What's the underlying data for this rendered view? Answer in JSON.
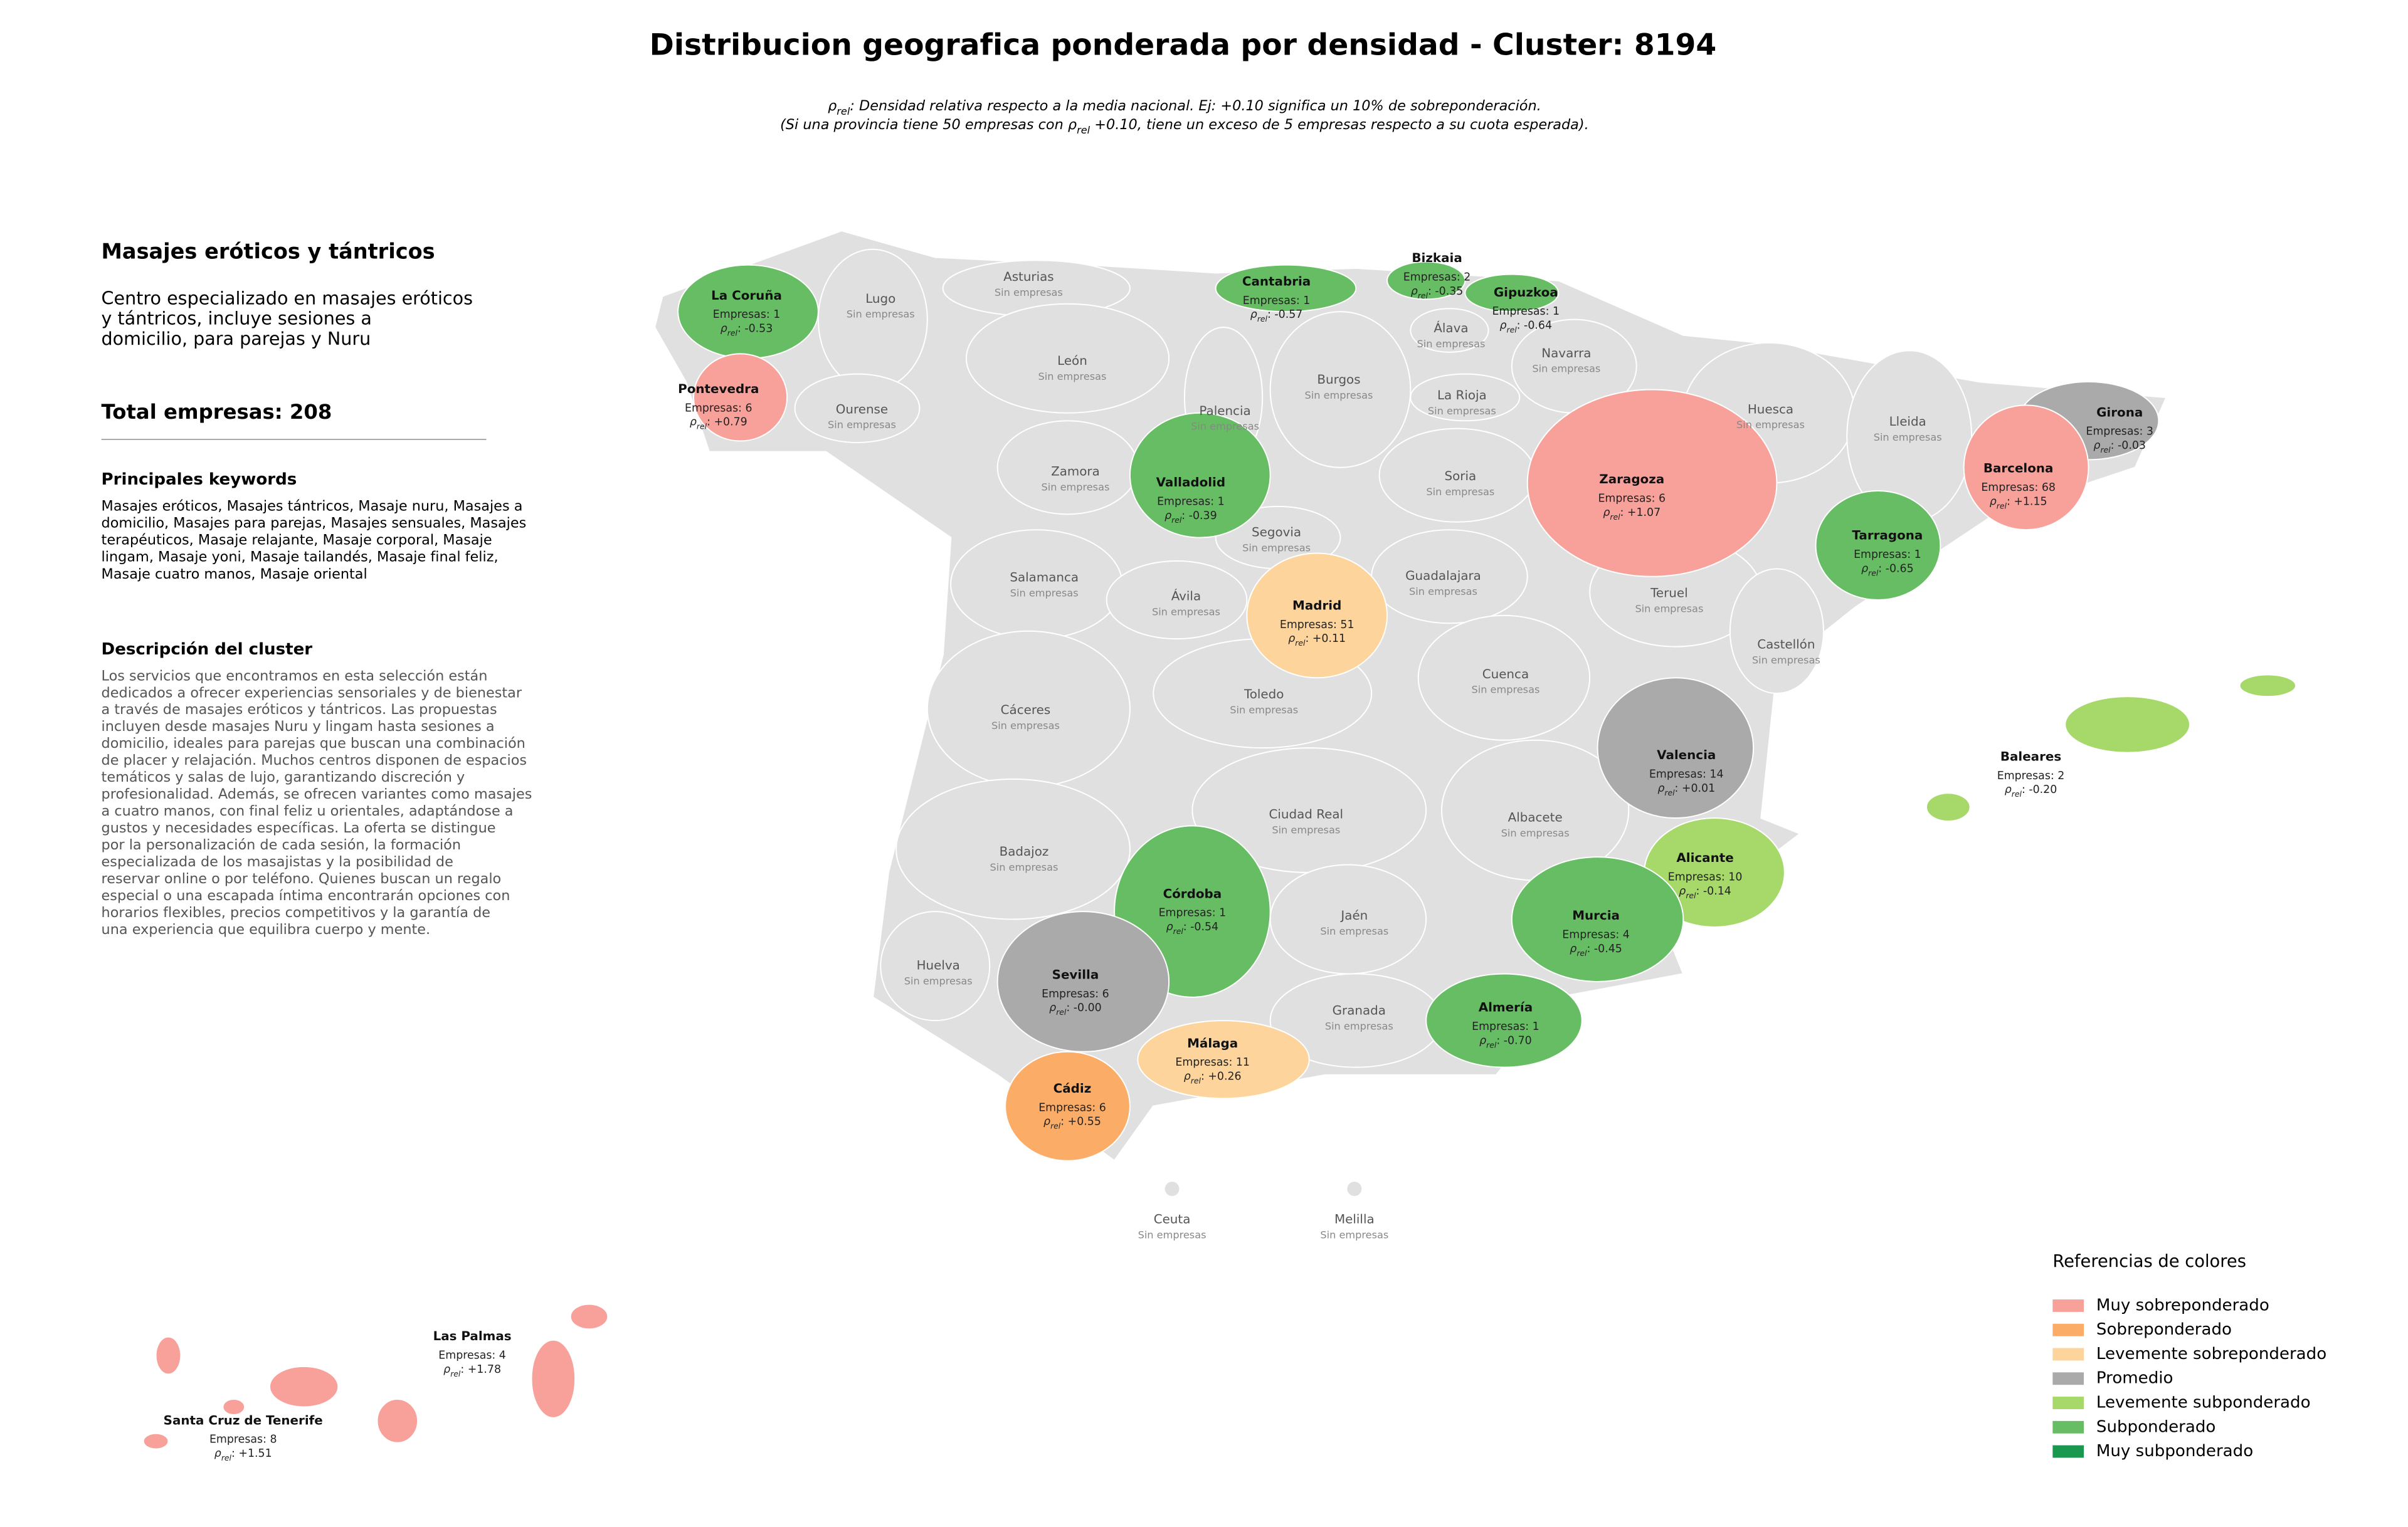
{
  "title": "Distribucion geografica ponderada por densidad - Cluster: 8194",
  "subtitle_lines": [
    [
      {
        "text": "ρ"
      },
      {
        "text": "rel",
        "sub": true
      },
      {
        "text": ": Densidad relativa respecto a la media nacional. Ej: +0.10 significa un 10% de sobreponderación."
      }
    ],
    [
      {
        "text": "(Si una provincia tiene 50 empresas con "
      },
      {
        "text": "ρ"
      },
      {
        "text": "rel",
        "sub": true
      },
      {
        "text": " +0.10, tiene un exceso de 5 empresas respecto a su cuota esperada)."
      }
    ]
  ],
  "cluster": {
    "name": "Masajes eróticos y tántricos",
    "summary_lines": [
      "Centro especializado en masajes eróticos",
      "y tántricos, incluye sesiones a",
      "domicilio, para parejas y Nuru"
    ],
    "total": "Total empresas: 208",
    "keywords_title": "Principales keywords",
    "keywords_lines": [
      "Masajes eróticos, Masajes tántricos, Masaje nuru, Masajes a",
      "domicilio, Masajes para parejas, Masajes sensuales, Masajes",
      "terapéuticos, Masaje relajante, Masaje corporal, Masaje",
      "lingam, Masaje yoni, Masaje tailandés, Masaje final feliz,",
      "Masaje cuatro manos, Masaje oriental"
    ],
    "description_title": "Descripción del cluster",
    "description_lines": [
      "Los servicios que encontramos en esta selección están",
      "dedicados a ofrecer experiencias sensoriales y de bienestar",
      "a través de masajes eróticos y tántricos. Las propuestas",
      "incluyen desde masajes Nuru y lingam hasta sesiones a",
      "domicilio, ideales para parejas que buscan una combinación",
      "de placer y relajación. Muchos centros disponen de espacios",
      "temáticos y salas de lujo, garantizando discreción y",
      "profesionalidad. Además, se ofrecen variantes como masajes",
      "a cuatro manos, con final feliz u orientales, adaptándose a",
      "gustos y necesidades específicas. La oferta se distingue",
      "por la personalización de cada sesión, la formación",
      "especializada de los masajistas y la posibilidad de",
      "reservar online o por teléfono. Quienes buscan un regalo",
      "especial o una escapada íntima encontrarán opciones con",
      "horarios flexibles, precios competitivos y la garantía de",
      "una experiencia que equilibra cuerpo y mente."
    ]
  },
  "rho_symbol": "ρ",
  "rho_sub": "rel",
  "no_data_color": "#e0e0e0",
  "provinces": [
    {
      "name": "La Coruña",
      "companies": "Empresas: 1",
      "rho": ": -0.53",
      "color": "#66bd63"
    },
    {
      "name": "Lugo",
      "companies": "Sin empresas"
    },
    {
      "name": "Asturias",
      "companies": "Sin empresas"
    },
    {
      "name": "Cantabria",
      "companies": "Empresas: 1",
      "rho": ": -0.57",
      "color": "#66bd63"
    },
    {
      "name": "Bizkaia",
      "companies": "Empresas: 2",
      "rho": ": -0.35",
      "color": "#66bd63"
    },
    {
      "name": "Gipuzkoa",
      "companies": "Empresas: 1",
      "rho": ": -0.64",
      "color": "#66bd63"
    },
    {
      "name": "Álava",
      "companies": "Sin empresas"
    },
    {
      "name": "Navarra",
      "companies": "Sin empresas"
    },
    {
      "name": "Pontevedra",
      "companies": "Empresas: 6",
      "rho": ": +0.79",
      "color": "#f8a19a"
    },
    {
      "name": "Ourense",
      "companies": "Sin empresas"
    },
    {
      "name": "León",
      "companies": "Sin empresas"
    },
    {
      "name": "Palencia",
      "companies": "Sin empresas"
    },
    {
      "name": "Burgos",
      "companies": "Sin empresas"
    },
    {
      "name": "La Rioja",
      "companies": "Sin empresas"
    },
    {
      "name": "Huesca",
      "companies": "Sin empresas"
    },
    {
      "name": "Lleida",
      "companies": "Sin empresas"
    },
    {
      "name": "Girona",
      "companies": "Empresas: 3",
      "rho": ": -0.03",
      "color": "#aaaaaa"
    },
    {
      "name": "Barcelona",
      "companies": "Empresas: 68",
      "rho": ": +1.15",
      "color": "#f8a19a"
    },
    {
      "name": "Zaragoza",
      "companies": "Empresas: 6",
      "rho": ": +1.07",
      "color": "#f8a19a"
    },
    {
      "name": "Zamora",
      "companies": "Sin empresas"
    },
    {
      "name": "Valladolid",
      "companies": "Empresas: 1",
      "rho": ": -0.39",
      "color": "#66bd63"
    },
    {
      "name": "Soria",
      "companies": "Sin empresas"
    },
    {
      "name": "Tarragona",
      "companies": "Empresas: 1",
      "rho": ": -0.65",
      "color": "#66bd63"
    },
    {
      "name": "Segovia",
      "companies": "Sin empresas"
    },
    {
      "name": "Salamanca",
      "companies": "Sin empresas"
    },
    {
      "name": "Ávila",
      "companies": "Sin empresas"
    },
    {
      "name": "Madrid",
      "companies": "Empresas: 51",
      "rho": ": +0.11",
      "color": "#fdd49b"
    },
    {
      "name": "Guadalajara",
      "companies": "Sin empresas"
    },
    {
      "name": "Teruel",
      "companies": "Sin empresas"
    },
    {
      "name": "Castellón",
      "companies": "Sin empresas"
    },
    {
      "name": "Cuenca",
      "companies": "Sin empresas"
    },
    {
      "name": "Cáceres",
      "companies": "Sin empresas"
    },
    {
      "name": "Toledo",
      "companies": "Sin empresas"
    },
    {
      "name": "Valencia",
      "companies": "Empresas: 14",
      "rho": ": +0.01",
      "color": "#aaaaaa"
    },
    {
      "name": "Baleares",
      "companies": "Empresas: 2",
      "rho": ": -0.20",
      "color": "#a6d96a"
    },
    {
      "name": "Ciudad Real",
      "companies": "Sin empresas"
    },
    {
      "name": "Albacete",
      "companies": "Sin empresas"
    },
    {
      "name": "Badajoz",
      "companies": "Sin empresas"
    },
    {
      "name": "Alicante",
      "companies": "Empresas: 10",
      "rho": ": -0.14",
      "color": "#a6d96a"
    },
    {
      "name": "Córdoba",
      "companies": "Empresas: 1",
      "rho": ": -0.54",
      "color": "#66bd63"
    },
    {
      "name": "Jaén",
      "companies": "Sin empresas"
    },
    {
      "name": "Murcia",
      "companies": "Empresas: 4",
      "rho": ": -0.45",
      "color": "#66bd63"
    },
    {
      "name": "Huelva",
      "companies": "Sin empresas"
    },
    {
      "name": "Sevilla",
      "companies": "Empresas: 6",
      "rho": ": -0.00",
      "color": "#aaaaaa"
    },
    {
      "name": "Granada",
      "companies": "Sin empresas"
    },
    {
      "name": "Almería",
      "companies": "Empresas: 1",
      "rho": ": -0.70",
      "color": "#66bd63"
    },
    {
      "name": "Málaga",
      "companies": "Empresas: 11",
      "rho": ": +0.26",
      "color": "#fdd49b"
    },
    {
      "name": "Cádiz",
      "companies": "Empresas: 6",
      "rho": ": +0.55",
      "color": "#fbad67"
    },
    {
      "name": "Ceuta",
      "companies": "Sin empresas"
    },
    {
      "name": "Melilla",
      "companies": "Sin empresas"
    },
    {
      "name": "Las Palmas",
      "companies": "Empresas: 4",
      "rho": ": +1.78",
      "color": "#f8a19a"
    },
    {
      "name": "Santa Cruz de Tenerife",
      "companies": "Empresas: 8",
      "rho": ": +1.51",
      "color": "#f8a19a"
    }
  ],
  "legend": {
    "title": "Referencias de colores",
    "items": [
      {
        "label": "Muy sobreponderado",
        "color": "#f8a19a"
      },
      {
        "label": "Sobreponderado",
        "color": "#fbad67"
      },
      {
        "label": "Levemente sobreponderado",
        "color": "#fdd49b"
      },
      {
        "label": "Promedio",
        "color": "#aaaaaa"
      },
      {
        "label": "Levemente subponderado",
        "color": "#a6d96a"
      },
      {
        "label": "Subponderado",
        "color": "#66bd63"
      },
      {
        "label": "Muy subponderado",
        "color": "#1a9850"
      }
    ]
  }
}
